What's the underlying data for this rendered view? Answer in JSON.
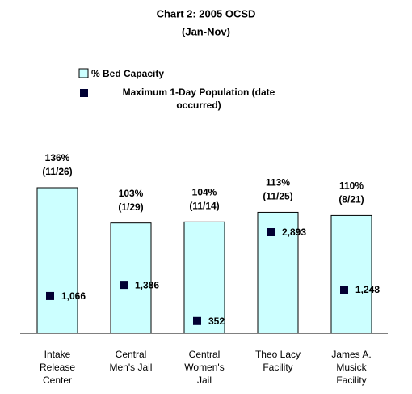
{
  "chart_data": {
    "type": "bar",
    "title": "Chart 2: 2005 OCSD",
    "subtitle": "(Jan-Nov)",
    "categories": [
      "Intake Release Center",
      "Central Men's Jail",
      "Central Women's Jail",
      "Theo Lacy Facility",
      "James A. Musick Facility"
    ],
    "date_labels": [
      "(11/26)",
      "(1/29)",
      "(11/14)",
      "(11/25)",
      "(8/21)"
    ],
    "series": [
      {
        "name": "% Bed Capacity",
        "color": "#ccffff",
        "values": [
          136,
          103,
          104,
          113,
          110
        ],
        "value_labels": [
          "136%",
          "103%",
          "104%",
          "113%",
          "110%"
        ]
      },
      {
        "name": "Maximum 1-Day Population (date occurred)",
        "color": "#000033",
        "values": [
          1066,
          1386,
          352,
          2893,
          1248
        ],
        "value_labels": [
          "1,066",
          "1,386",
          "352",
          "2,893",
          "1,248"
        ]
      }
    ]
  }
}
